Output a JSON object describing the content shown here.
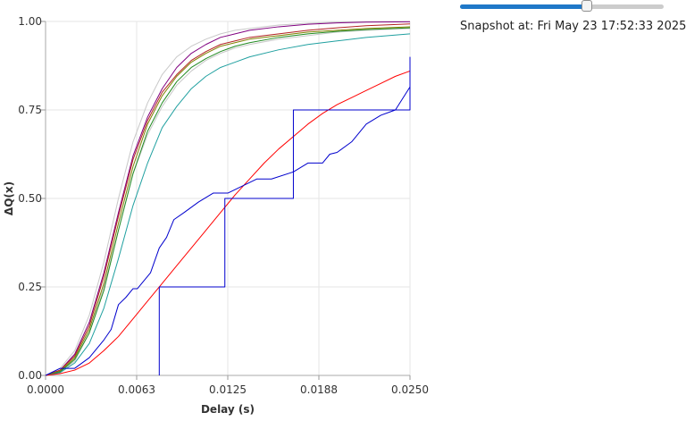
{
  "snapshot": {
    "slider_value": 0.63,
    "text": "Snapshot at: Fri May 23 17:52:33 2025"
  },
  "chart_data": {
    "type": "line",
    "title": "",
    "xlabel": "Delay (s)",
    "ylabel": "ΔQ(x)",
    "xlim": [
      0,
      0.025
    ],
    "ylim": [
      0,
      1
    ],
    "xticks": [
      "0.0000",
      "0.0063",
      "0.0125",
      "0.0188",
      "0.0250"
    ],
    "yticks": [
      "0.00",
      "0.25",
      "0.50",
      "0.75",
      "1.00"
    ],
    "grid": true,
    "series": [
      {
        "color": "#c8c8c8",
        "kind": "line",
        "x": [
          0,
          0.001,
          0.002,
          0.003,
          0.004,
          0.005,
          0.006,
          0.007,
          0.008,
          0.009,
          0.01,
          0.011,
          0.012,
          0.013,
          0.014,
          0.016,
          0.018,
          0.02,
          0.022,
          0.025
        ],
        "y": [
          0,
          0.02,
          0.07,
          0.17,
          0.32,
          0.5,
          0.66,
          0.77,
          0.85,
          0.9,
          0.93,
          0.95,
          0.965,
          0.975,
          0.98,
          0.99,
          0.995,
          0.998,
          0.999,
          1.0
        ]
      },
      {
        "color": "#c8c8c8",
        "kind": "line",
        "x": [
          0,
          0.001,
          0.002,
          0.003,
          0.004,
          0.005,
          0.006,
          0.007,
          0.008,
          0.009,
          0.01,
          0.011,
          0.012,
          0.013,
          0.014,
          0.016,
          0.018,
          0.02,
          0.022,
          0.025
        ],
        "y": [
          0,
          0.01,
          0.04,
          0.12,
          0.25,
          0.41,
          0.57,
          0.68,
          0.76,
          0.82,
          0.86,
          0.89,
          0.91,
          0.925,
          0.935,
          0.95,
          0.96,
          0.97,
          0.975,
          0.98
        ]
      },
      {
        "color": "#800080",
        "kind": "line",
        "x": [
          0,
          0.001,
          0.002,
          0.003,
          0.004,
          0.005,
          0.006,
          0.007,
          0.008,
          0.009,
          0.01,
          0.011,
          0.012,
          0.013,
          0.014,
          0.016,
          0.018,
          0.02,
          0.022,
          0.025
        ],
        "y": [
          0,
          0.015,
          0.06,
          0.15,
          0.29,
          0.46,
          0.62,
          0.73,
          0.81,
          0.87,
          0.91,
          0.935,
          0.955,
          0.965,
          0.975,
          0.985,
          0.992,
          0.996,
          0.998,
          0.999
        ]
      },
      {
        "color": "#b22222",
        "kind": "line",
        "x": [
          0,
          0.001,
          0.002,
          0.003,
          0.004,
          0.005,
          0.006,
          0.007,
          0.008,
          0.009,
          0.01,
          0.011,
          0.012,
          0.013,
          0.014,
          0.016,
          0.018,
          0.02,
          0.022,
          0.025
        ],
        "y": [
          0,
          0.015,
          0.055,
          0.14,
          0.28,
          0.45,
          0.61,
          0.72,
          0.8,
          0.85,
          0.89,
          0.915,
          0.935,
          0.945,
          0.955,
          0.965,
          0.975,
          0.982,
          0.988,
          0.993
        ]
      },
      {
        "color": "#808000",
        "kind": "line",
        "x": [
          0,
          0.001,
          0.002,
          0.003,
          0.004,
          0.005,
          0.006,
          0.007,
          0.008,
          0.009,
          0.01,
          0.011,
          0.012,
          0.013,
          0.014,
          0.016,
          0.018,
          0.02,
          0.022,
          0.025
        ],
        "y": [
          0,
          0.012,
          0.05,
          0.13,
          0.26,
          0.43,
          0.59,
          0.71,
          0.79,
          0.845,
          0.885,
          0.91,
          0.93,
          0.94,
          0.95,
          0.96,
          0.97,
          0.975,
          0.98,
          0.985
        ]
      },
      {
        "color": "#228b22",
        "kind": "line",
        "x": [
          0,
          0.001,
          0.002,
          0.003,
          0.004,
          0.005,
          0.006,
          0.007,
          0.008,
          0.009,
          0.01,
          0.011,
          0.012,
          0.013,
          0.014,
          0.016,
          0.018,
          0.02,
          0.022,
          0.025
        ],
        "y": [
          0,
          0.01,
          0.045,
          0.12,
          0.24,
          0.41,
          0.57,
          0.69,
          0.77,
          0.83,
          0.87,
          0.895,
          0.915,
          0.93,
          0.94,
          0.955,
          0.965,
          0.972,
          0.977,
          0.982
        ]
      },
      {
        "color": "#20a0a0",
        "kind": "line",
        "x": [
          0,
          0.001,
          0.002,
          0.003,
          0.004,
          0.005,
          0.006,
          0.007,
          0.008,
          0.009,
          0.01,
          0.011,
          0.012,
          0.013,
          0.014,
          0.016,
          0.018,
          0.02,
          0.022,
          0.025
        ],
        "y": [
          0,
          0.008,
          0.035,
          0.09,
          0.19,
          0.33,
          0.48,
          0.6,
          0.7,
          0.76,
          0.81,
          0.845,
          0.87,
          0.885,
          0.9,
          0.92,
          0.935,
          0.945,
          0.955,
          0.965
        ]
      },
      {
        "color": "#ff0000",
        "kind": "line",
        "x": [
          0,
          0.001,
          0.002,
          0.003,
          0.004,
          0.005,
          0.006,
          0.007,
          0.008,
          0.009,
          0.01,
          0.011,
          0.012,
          0.013,
          0.014,
          0.015,
          0.016,
          0.017,
          0.018,
          0.019,
          0.02,
          0.021,
          0.022,
          0.023,
          0.024,
          0.025
        ],
        "y": [
          0,
          0.005,
          0.015,
          0.035,
          0.07,
          0.11,
          0.16,
          0.21,
          0.26,
          0.31,
          0.36,
          0.41,
          0.46,
          0.51,
          0.555,
          0.6,
          0.64,
          0.675,
          0.71,
          0.74,
          0.765,
          0.785,
          0.805,
          0.825,
          0.845,
          0.86
        ]
      },
      {
        "color": "#0000cd",
        "kind": "line",
        "x": [
          0,
          0.001,
          0.0015,
          0.002,
          0.003,
          0.004,
          0.0045,
          0.005,
          0.0055,
          0.006,
          0.0063,
          0.0068,
          0.0072,
          0.0078,
          0.0083,
          0.0088,
          0.0095,
          0.0105,
          0.0115,
          0.0125,
          0.0145,
          0.0155,
          0.017,
          0.018,
          0.019,
          0.0195,
          0.02,
          0.021,
          0.022,
          0.023,
          0.024,
          0.025
        ],
        "y": [
          0,
          0.02,
          0.02,
          0.02,
          0.05,
          0.1,
          0.13,
          0.2,
          0.22,
          0.245,
          0.245,
          0.27,
          0.29,
          0.36,
          0.39,
          0.44,
          0.46,
          0.49,
          0.515,
          0.515,
          0.555,
          0.555,
          0.575,
          0.6,
          0.6,
          0.625,
          0.63,
          0.66,
          0.71,
          0.735,
          0.75,
          0.815
        ]
      },
      {
        "color": "#0000cd",
        "kind": "step",
        "x": [
          0.0078,
          0.0078,
          0.0123,
          0.0123,
          0.017,
          0.017,
          0.025,
          0.025
        ],
        "y": [
          0,
          0.25,
          0.25,
          0.5,
          0.5,
          0.75,
          0.75,
          0.9
        ]
      }
    ]
  }
}
